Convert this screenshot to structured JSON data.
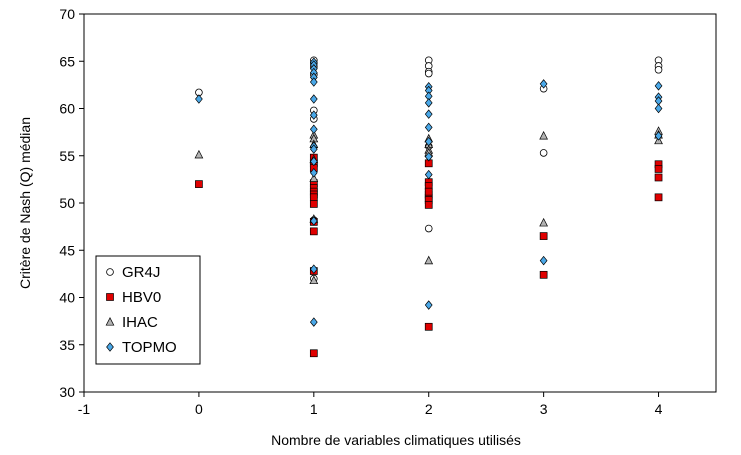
{
  "chart_data": {
    "type": "scatter",
    "xlabel": "Nombre de variables climatiques utilisés",
    "ylabel": "Critère de Nash (Q) médian",
    "xlim": [
      -1,
      4.5
    ],
    "ylim": [
      30,
      70
    ],
    "xticks": [
      -1,
      0,
      1,
      2,
      3,
      4
    ],
    "yticks": [
      30,
      35,
      40,
      45,
      50,
      55,
      60,
      65,
      70
    ],
    "grid": false,
    "legend_position": "bottom-left",
    "series": [
      {
        "name": "GR4J",
        "marker": "circle-open",
        "color": "#ffffff",
        "x": [
          0,
          1,
          1,
          1,
          1,
          1,
          1,
          1,
          1,
          1,
          2,
          2,
          2,
          2,
          2,
          2,
          3,
          3,
          4,
          4,
          4
        ],
        "y": [
          61.7,
          65.1,
          64.8,
          64.4,
          63.6,
          59.8,
          58.9,
          54.0,
          48.2,
          42.0,
          65.1,
          64.5,
          63.9,
          63.7,
          56.0,
          47.3,
          62.1,
          55.3,
          65.1,
          64.5,
          64.1
        ]
      },
      {
        "name": "HBV0",
        "marker": "square",
        "color": "#e00000",
        "x": [
          0,
          1,
          1,
          1,
          1,
          1,
          1,
          1,
          1,
          1,
          1,
          1,
          1,
          1,
          2,
          2,
          2,
          2,
          2,
          2,
          2,
          2,
          2,
          3,
          3,
          4,
          4,
          4,
          4
        ],
        "y": [
          52.0,
          54.2,
          53.7,
          52.1,
          51.6,
          51.2,
          50.9,
          50.6,
          49.9,
          48.0,
          47.0,
          42.8,
          34.1,
          54.8,
          54.2,
          52.2,
          51.8,
          50.9,
          50.5,
          50.3,
          49.8,
          36.9,
          51.2,
          46.5,
          42.4,
          54.1,
          53.6,
          52.7,
          50.6
        ]
      },
      {
        "name": "IHAC",
        "marker": "triangle",
        "color": "#b3b3b3",
        "x": [
          0,
          1,
          1,
          1,
          1,
          1,
          1,
          1,
          2,
          2,
          2,
          2,
          2,
          3,
          3,
          4,
          4,
          4
        ],
        "y": [
          55.1,
          57.2,
          56.8,
          56.2,
          54.6,
          52.6,
          48.3,
          41.8,
          56.8,
          56.2,
          55.6,
          55.3,
          43.9,
          57.1,
          47.9,
          57.6,
          57.2,
          56.6
        ]
      },
      {
        "name": "TOPMO",
        "marker": "diamond",
        "color": "#4aa8e8",
        "x": [
          0,
          1,
          1,
          1,
          1,
          1,
          1,
          1,
          1,
          1,
          1,
          1,
          1,
          1,
          1,
          1,
          1,
          2,
          2,
          2,
          2,
          2,
          2,
          2,
          2,
          2,
          2,
          3,
          3,
          4,
          4,
          4,
          4,
          4
        ],
        "y": [
          61.0,
          64.9,
          64.6,
          64.2,
          63.8,
          63.3,
          62.8,
          61.0,
          59.3,
          57.8,
          56.0,
          55.7,
          54.4,
          53.2,
          48.1,
          37.4,
          43.0,
          62.3,
          61.9,
          61.3,
          60.6,
          59.4,
          58.0,
          56.5,
          54.9,
          53.0,
          39.2,
          62.6,
          43.9,
          62.4,
          61.2,
          60.8,
          60.0,
          57.1
        ]
      }
    ]
  }
}
